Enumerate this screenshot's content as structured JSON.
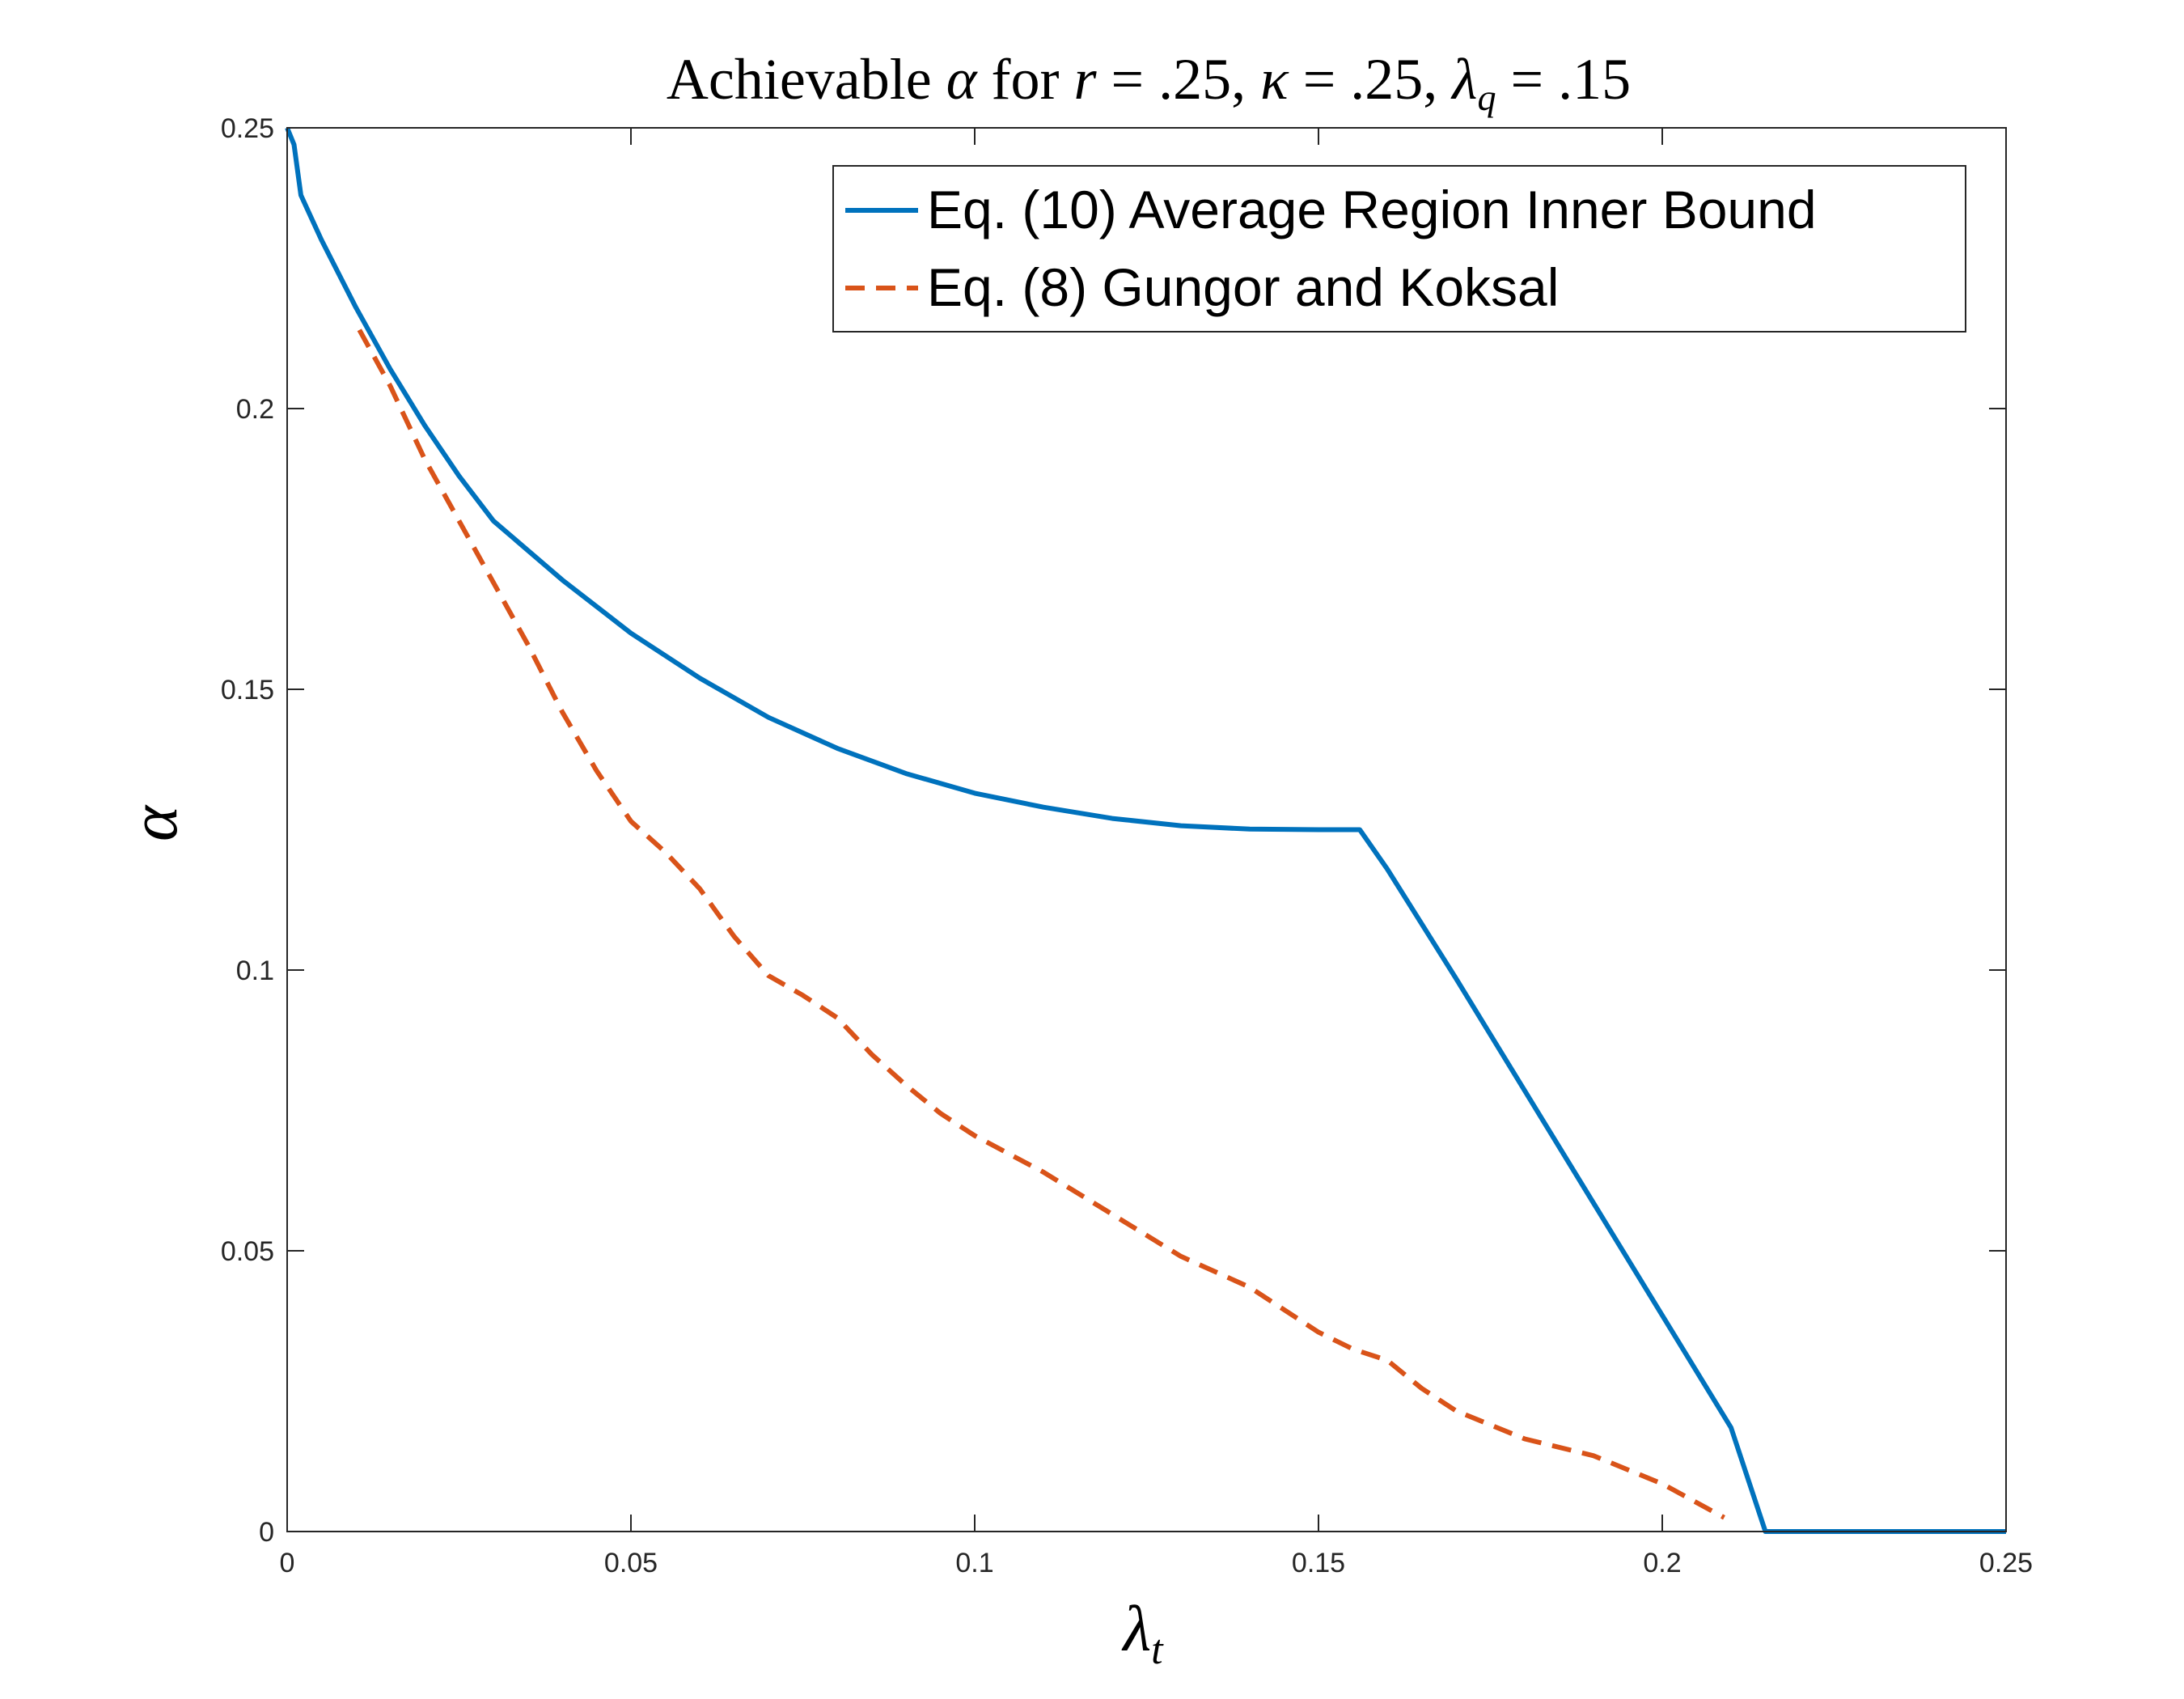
{
  "chart_data": {
    "type": "line",
    "title": "Achievable α for r = .25, κ = .25, λ_q = .15",
    "title_parts": {
      "prefix": "Achievable ",
      "alpha": "α",
      "for": " for ",
      "r": "r",
      "eq1": " = .25, ",
      "kappa": "κ",
      "eq2": " = .25, ",
      "lambda": "λ",
      "sub": "q",
      "eq3": " = .15"
    },
    "xlabel": "λ",
    "xlabel_sub": "t",
    "ylabel": "α",
    "xlim": [
      0,
      0.25
    ],
    "ylim": [
      0,
      0.25
    ],
    "xticks": [
      0,
      0.05,
      0.1,
      0.15,
      0.2,
      0.25
    ],
    "xtick_labels": [
      "0",
      "0.05",
      "0.1",
      "0.15",
      "0.2",
      "0.25"
    ],
    "yticks": [
      0,
      0.05,
      0.1,
      0.15,
      0.2,
      0.25
    ],
    "ytick_labels": [
      "0",
      "0.05",
      "0.1",
      "0.15",
      "0.2",
      "0.25"
    ],
    "grid": false,
    "legend_position": "top-right",
    "series": [
      {
        "name": "Eq. (10) Average Region Inner Bound",
        "color": "#0072BD",
        "style": "solid",
        "x": [
          0,
          0.001,
          0.002,
          0.005,
          0.01,
          0.015,
          0.02,
          0.025,
          0.03,
          0.04,
          0.05,
          0.06,
          0.07,
          0.08,
          0.09,
          0.1,
          0.11,
          0.12,
          0.13,
          0.14,
          0.15,
          0.156,
          0.16,
          0.17,
          0.18,
          0.19,
          0.2,
          0.21,
          0.215,
          0.22,
          0.23,
          0.24,
          0.25
        ],
        "y": [
          0.25,
          0.247,
          0.238,
          0.23,
          0.218,
          0.207,
          0.197,
          0.188,
          0.18,
          0.1695,
          0.16,
          0.152,
          0.145,
          0.1395,
          0.135,
          0.1315,
          0.129,
          0.127,
          0.1257,
          0.1251,
          0.125,
          0.125,
          0.118,
          0.0985,
          0.0785,
          0.0585,
          0.0385,
          0.0185,
          0.0,
          0.0,
          0.0,
          0.0,
          0.0
        ]
      },
      {
        "name": "Eq. (8) Gungor and Koksal",
        "color": "#D95319",
        "style": "dashed",
        "x": [
          0.0105,
          0.015,
          0.02,
          0.025,
          0.03,
          0.035,
          0.04,
          0.045,
          0.05,
          0.055,
          0.06,
          0.065,
          0.07,
          0.075,
          0.08,
          0.085,
          0.09,
          0.095,
          0.1,
          0.11,
          0.12,
          0.13,
          0.14,
          0.15,
          0.155,
          0.16,
          0.165,
          0.17,
          0.18,
          0.19,
          0.2,
          0.209
        ],
        "y": [
          0.214,
          0.204,
          0.191,
          0.18,
          0.169,
          0.158,
          0.146,
          0.1355,
          0.1265,
          0.121,
          0.1145,
          0.106,
          0.099,
          0.0955,
          0.0915,
          0.085,
          0.0795,
          0.0745,
          0.0705,
          0.064,
          0.0565,
          0.049,
          0.0435,
          0.0355,
          0.0325,
          0.0305,
          0.0255,
          0.0215,
          0.0165,
          0.0135,
          0.0085,
          0.0025
        ]
      }
    ]
  }
}
